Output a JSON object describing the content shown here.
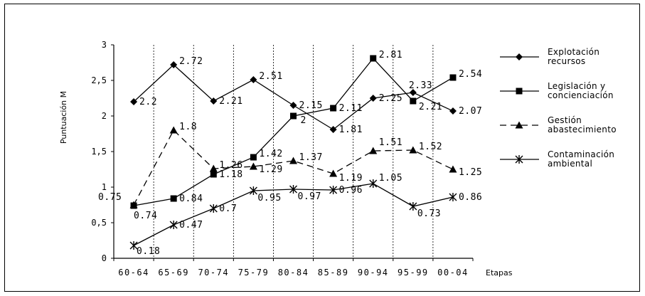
{
  "chart_data": {
    "type": "line",
    "title": "",
    "xlabel": "Etapas",
    "ylabel": "Puntuación M",
    "ylim": [
      0,
      3
    ],
    "yticks": [
      "0",
      "0,5",
      "1",
      "1,5",
      "2",
      "2,5",
      "3"
    ],
    "categories": [
      "60-64",
      "65-69",
      "70-74",
      "75-79",
      "80-84",
      "85-89",
      "90-94",
      "95-99",
      "00-04"
    ],
    "grid": "vertical dashed",
    "legend_position": "right",
    "series": [
      {
        "name": "Explotación recursos",
        "legend_lines": [
          "Explotación",
          "recursos"
        ],
        "marker": "diamond",
        "dash": false,
        "values": [
          2.2,
          2.72,
          2.21,
          2.51,
          2.15,
          1.81,
          2.25,
          2.33,
          2.07
        ],
        "labels": [
          "2.2",
          "2.72",
          "2.21",
          "2.51",
          "2.15",
          "1.81",
          "2.25",
          "2.33",
          "2.07"
        ]
      },
      {
        "name": "Legislación y concienciación",
        "legend_lines": [
          "Legislación y",
          "concienciación"
        ],
        "marker": "square",
        "dash": false,
        "values": [
          0.74,
          0.84,
          1.18,
          1.42,
          2,
          2.11,
          2.81,
          2.21,
          2.54
        ],
        "labels": [
          "0.74",
          "0.84",
          "1.18",
          "1.42",
          "2",
          "2.11",
          "2.81",
          "2.21",
          "2.54"
        ]
      },
      {
        "name": "Gestión abastecimiento",
        "legend_lines": [
          "Gestión",
          "abastecimiento"
        ],
        "marker": "triangle",
        "dash": true,
        "values": [
          0.75,
          1.8,
          1.26,
          1.29,
          1.37,
          1.19,
          1.51,
          1.52,
          1.25
        ],
        "labels": [
          "0.75",
          "1.8",
          "1.26",
          "1.29",
          "1.37",
          "1.19",
          "1.51",
          "1.52",
          "1.25"
        ]
      },
      {
        "name": "Contaminación ambiental",
        "legend_lines": [
          "Contaminación",
          "ambiental"
        ],
        "marker": "star",
        "dash": false,
        "values": [
          0.18,
          0.47,
          0.7,
          0.95,
          0.97,
          0.96,
          1.05,
          0.73,
          0.86
        ],
        "labels": [
          "0.18",
          "0.47",
          "0.7",
          "0.95",
          "0.97",
          "0.96",
          "1.05",
          "0.73",
          "0.86"
        ]
      }
    ]
  }
}
